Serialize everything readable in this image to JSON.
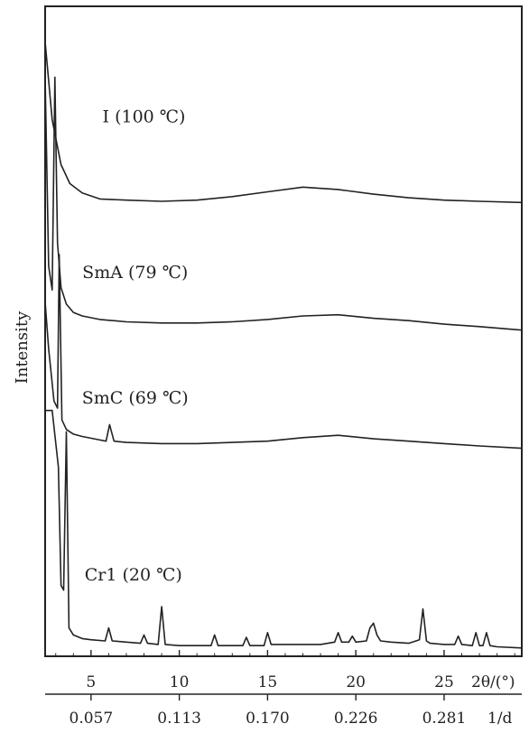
{
  "chart_data": {
    "type": "line",
    "ylabel": "Intensity",
    "xlabel": "2θ/(°)",
    "xlabel_secondary": "1/d",
    "x_ticks": [
      "5",
      "10",
      "15",
      "20",
      "25"
    ],
    "x_ticks_secondary": [
      "0.057",
      "0.113",
      "0.170",
      "0.226",
      "0.281"
    ],
    "xlim": [
      2.4,
      29.4
    ],
    "series": [
      {
        "name": "I (100 ℃)",
        "x": [
          2.4,
          2.8,
          3.3,
          3.8,
          4.5,
          5.5,
          7,
          9,
          11,
          13,
          15,
          17,
          19,
          21,
          23,
          25,
          27,
          29.4
        ],
        "y": [
          2.6,
          2.27,
          2.08,
          2.0,
          1.96,
          1.935,
          1.93,
          1.925,
          1.93,
          1.945,
          1.965,
          1.985,
          1.975,
          1.955,
          1.94,
          1.93,
          1.925,
          1.92
        ]
      },
      {
        "name": "SmA (79 ℃)",
        "x": [
          2.4,
          2.6,
          2.8,
          2.95,
          3.1,
          3.3,
          3.6,
          4.0,
          4.5,
          5.5,
          7,
          9,
          11,
          13,
          15,
          17,
          19,
          21,
          23,
          25,
          27,
          29.4
        ],
        "y": [
          2.45,
          1.65,
          1.55,
          2.45,
          1.75,
          1.56,
          1.49,
          1.455,
          1.44,
          1.425,
          1.415,
          1.41,
          1.41,
          1.415,
          1.425,
          1.44,
          1.445,
          1.43,
          1.42,
          1.405,
          1.395,
          1.38
        ]
      },
      {
        "name": "SmC (69 ℃)",
        "x": [
          2.4,
          2.6,
          2.9,
          3.1,
          3.2,
          3.35,
          3.6,
          4,
          4.5,
          5.5,
          5.85,
          6.05,
          6.3,
          7,
          9,
          11,
          13,
          15,
          17,
          19,
          21,
          23,
          25,
          27,
          29.4
        ],
        "y": [
          1.5,
          1.3,
          1.08,
          1.05,
          1.7,
          1.0,
          0.96,
          0.94,
          0.93,
          0.915,
          0.91,
          0.98,
          0.91,
          0.905,
          0.9,
          0.9,
          0.905,
          0.91,
          0.925,
          0.935,
          0.92,
          0.91,
          0.9,
          0.89,
          0.88
        ]
      },
      {
        "name": "Cr1 (20 ℃)",
        "x": [
          2.4,
          2.8,
          3.15,
          3.3,
          3.45,
          3.6,
          3.75,
          4.0,
          4.5,
          5,
          5.8,
          6.0,
          6.2,
          7,
          7.8,
          8.0,
          8.2,
          8.8,
          9.0,
          9.2,
          10,
          11,
          11.8,
          12.0,
          12.2,
          13,
          13.6,
          13.8,
          14,
          14.8,
          15.0,
          15.2,
          16,
          17,
          18,
          18.8,
          19.0,
          19.2,
          19.6,
          19.8,
          20.0,
          20.6,
          20.8,
          21.0,
          21.2,
          21.4,
          22,
          23,
          23.6,
          23.8,
          24.0,
          24.2,
          25,
          25.6,
          25.8,
          26.0,
          26.6,
          26.8,
          27.0,
          27.2,
          27.4,
          27.6,
          28,
          29.4
        ],
        "y": [
          1.04,
          1.04,
          0.8,
          0.3,
          0.28,
          0.95,
          0.12,
          0.09,
          0.075,
          0.07,
          0.065,
          0.12,
          0.065,
          0.06,
          0.055,
          0.09,
          0.055,
          0.05,
          0.21,
          0.05,
          0.045,
          0.045,
          0.045,
          0.09,
          0.045,
          0.045,
          0.045,
          0.08,
          0.045,
          0.045,
          0.1,
          0.05,
          0.05,
          0.05,
          0.05,
          0.06,
          0.1,
          0.06,
          0.06,
          0.085,
          0.06,
          0.065,
          0.12,
          0.14,
          0.09,
          0.065,
          0.06,
          0.055,
          0.07,
          0.2,
          0.065,
          0.055,
          0.05,
          0.05,
          0.085,
          0.05,
          0.045,
          0.1,
          0.045,
          0.045,
          0.1,
          0.045,
          0.04,
          0.035
        ]
      }
    ]
  }
}
